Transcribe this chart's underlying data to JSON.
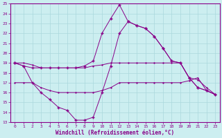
{
  "xlabel": "Windchill (Refroidissement éolien,°C)",
  "xlim": [
    -0.5,
    23.5
  ],
  "ylim": [
    13,
    25
  ],
  "yticks": [
    13,
    14,
    15,
    16,
    17,
    18,
    19,
    20,
    21,
    22,
    23,
    24,
    25
  ],
  "xticks": [
    0,
    1,
    2,
    3,
    4,
    5,
    6,
    7,
    8,
    9,
    10,
    11,
    12,
    13,
    14,
    15,
    16,
    17,
    18,
    19,
    20,
    21,
    22,
    23
  ],
  "bg_color": "#cceef0",
  "line_color": "#880088",
  "grid_color": "#aad8dc",
  "line1_x": [
    0,
    1,
    2,
    3,
    4,
    5,
    6,
    7,
    8,
    9,
    10,
    11,
    12,
    13,
    14,
    15,
    16,
    17,
    18,
    19,
    20,
    21,
    22,
    23
  ],
  "line1_y": [
    19,
    18.7,
    18.5,
    18.5,
    18.5,
    18.5,
    18.5,
    18.5,
    18.7,
    19.2,
    22.0,
    23.5,
    24.9,
    23.2,
    22.8,
    22.5,
    21.7,
    20.5,
    19.2,
    19.0,
    17.5,
    16.5,
    16.2,
    15.8
  ],
  "line2_x": [
    0,
    1,
    2,
    3,
    4,
    5,
    6,
    7,
    8,
    9,
    10,
    11,
    12,
    13,
    14,
    15,
    16,
    17,
    18,
    19,
    20,
    21,
    22,
    23
  ],
  "line2_y": [
    19,
    18.7,
    17.0,
    16.0,
    15.3,
    14.5,
    14.2,
    13.2,
    13.2,
    13.5,
    16.0,
    18.7,
    22.0,
    23.2,
    22.8,
    22.5,
    21.7,
    20.5,
    19.2,
    19.0,
    17.5,
    16.5,
    16.2,
    15.8
  ],
  "line3_x": [
    0,
    1,
    2,
    3,
    4,
    5,
    6,
    7,
    8,
    9,
    10,
    11,
    12,
    13,
    14,
    15,
    16,
    17,
    18,
    19,
    20,
    21,
    22,
    23
  ],
  "line3_y": [
    19.0,
    19.0,
    18.8,
    18.5,
    18.5,
    18.5,
    18.5,
    18.5,
    18.5,
    18.7,
    18.8,
    19.0,
    19.0,
    19.0,
    19.0,
    19.0,
    19.0,
    19.0,
    19.0,
    19.0,
    17.5,
    17.3,
    16.5,
    15.8
  ],
  "line4_x": [
    0,
    1,
    2,
    3,
    4,
    5,
    6,
    7,
    8,
    9,
    10,
    11,
    12,
    13,
    14,
    15,
    16,
    17,
    18,
    19,
    20,
    21,
    22,
    23
  ],
  "line4_y": [
    17.0,
    17.0,
    17.0,
    16.5,
    16.2,
    16.0,
    16.0,
    16.0,
    16.0,
    16.0,
    16.2,
    16.5,
    17.0,
    17.0,
    17.0,
    17.0,
    17.0,
    17.0,
    17.0,
    17.0,
    17.2,
    17.5,
    16.2,
    15.8
  ]
}
